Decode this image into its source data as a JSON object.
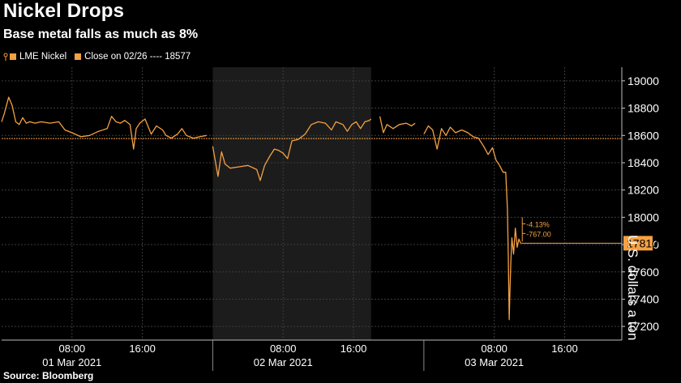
{
  "header": {
    "title": "Nickel Drops",
    "subtitle": "Base metal falls as much as 8%"
  },
  "legend": {
    "series_label": "LME Nickel",
    "close_label": "Close on 02/26 ---- 18577"
  },
  "source": "Source: Bloomberg",
  "colors": {
    "series": "#f5a142",
    "background": "#000000",
    "shade": "#1c1c1c",
    "grid": "#3c3c3c"
  },
  "chart_data": {
    "type": "line",
    "ylabel": "U.S. dollars a ton",
    "ylim": [
      17100,
      19100
    ],
    "yticks": [
      17200,
      17400,
      17600,
      17800,
      18000,
      18200,
      18400,
      18600,
      18800,
      19000
    ],
    "xlim_hours": [
      0,
      70.5
    ],
    "xticks": [
      {
        "h": 8,
        "time": "08:00",
        "date": "01 Mar 2021"
      },
      {
        "h": 16,
        "time": "16:00",
        "date": ""
      },
      {
        "h": 32,
        "time": "08:00",
        "date": "02 Mar 2021"
      },
      {
        "h": 40,
        "time": "16:00",
        "date": ""
      },
      {
        "h": 56,
        "time": "08:00",
        "date": "03 Mar 2021"
      },
      {
        "h": 64,
        "time": "16:00",
        "date": ""
      }
    ],
    "shaded_range_hours": [
      24,
      42
    ],
    "reference_line": {
      "label": "Close on 02/26",
      "value": 18577
    },
    "last_value": "17810",
    "annotation": {
      "percent": "-4.13%",
      "change": "-767.00"
    },
    "series": [
      {
        "name": "LME Nickel",
        "segments": [
          [
            [
              0.0,
              18700
            ],
            [
              0.3,
              18760
            ],
            [
              0.8,
              18880
            ],
            [
              1.2,
              18820
            ],
            [
              1.6,
              18700
            ],
            [
              2.0,
              18680
            ],
            [
              2.4,
              18730
            ],
            [
              2.8,
              18690
            ],
            [
              3.2,
              18700
            ],
            [
              3.8,
              18690
            ],
            [
              4.5,
              18700
            ],
            [
              5.5,
              18690
            ],
            [
              6.5,
              18700
            ],
            [
              7.2,
              18640
            ],
            [
              8.0,
              18620
            ],
            [
              9.0,
              18590
            ],
            [
              10.0,
              18600
            ],
            [
              11.0,
              18630
            ],
            [
              12.0,
              18650
            ],
            [
              12.5,
              18740
            ],
            [
              13.0,
              18700
            ],
            [
              13.5,
              18690
            ],
            [
              14.0,
              18710
            ],
            [
              14.6,
              18680
            ],
            [
              15.0,
              18500
            ],
            [
              15.3,
              18650
            ],
            [
              15.7,
              18690
            ],
            [
              16.3,
              18720
            ],
            [
              17.0,
              18610
            ],
            [
              17.6,
              18670
            ],
            [
              18.3,
              18640
            ],
            [
              18.7,
              18600
            ],
            [
              19.3,
              18580
            ],
            [
              20.0,
              18610
            ],
            [
              20.5,
              18650
            ],
            [
              21.0,
              18600
            ],
            [
              21.8,
              18580
            ],
            [
              22.5,
              18590
            ],
            [
              23.3,
              18600
            ]
          ],
          [
            [
              24.0,
              18520
            ],
            [
              24.6,
              18300
            ],
            [
              25.0,
              18480
            ],
            [
              25.4,
              18390
            ],
            [
              26.0,
              18360
            ],
            [
              27.0,
              18370
            ],
            [
              28.0,
              18380
            ],
            [
              29.0,
              18350
            ],
            [
              29.4,
              18270
            ],
            [
              29.9,
              18380
            ],
            [
              30.5,
              18450
            ],
            [
              31.0,
              18500
            ],
            [
              31.5,
              18490
            ],
            [
              32.0,
              18470
            ],
            [
              32.5,
              18430
            ],
            [
              33.0,
              18560
            ],
            [
              33.7,
              18570
            ],
            [
              34.5,
              18610
            ],
            [
              35.2,
              18680
            ],
            [
              36.0,
              18700
            ],
            [
              36.8,
              18690
            ],
            [
              37.5,
              18640
            ],
            [
              38.0,
              18700
            ],
            [
              38.8,
              18680
            ],
            [
              39.3,
              18630
            ],
            [
              39.8,
              18680
            ],
            [
              40.3,
              18700
            ],
            [
              40.8,
              18650
            ],
            [
              41.3,
              18700
            ],
            [
              41.8,
              18710
            ],
            [
              42.0,
              18720
            ]
          ],
          [
            [
              43.0,
              18740
            ],
            [
              43.4,
              18620
            ],
            [
              43.8,
              18680
            ],
            [
              44.5,
              18650
            ],
            [
              45.2,
              18680
            ],
            [
              46.0,
              18690
            ],
            [
              46.6,
              18670
            ],
            [
              47.0,
              18690
            ]
          ],
          [
            [
              48.0,
              18610
            ],
            [
              48.5,
              18670
            ],
            [
              49.0,
              18640
            ],
            [
              49.5,
              18500
            ],
            [
              50.0,
              18650
            ],
            [
              50.5,
              18600
            ],
            [
              51.0,
              18660
            ],
            [
              51.6,
              18620
            ],
            [
              52.3,
              18640
            ],
            [
              53.0,
              18620
            ],
            [
              53.6,
              18590
            ],
            [
              54.2,
              18580
            ],
            [
              54.8,
              18520
            ],
            [
              55.3,
              18460
            ],
            [
              55.8,
              18510
            ],
            [
              56.2,
              18420
            ],
            [
              56.6,
              18380
            ],
            [
              57.0,
              18330
            ],
            [
              57.3,
              18330
            ],
            [
              57.5,
              18060
            ],
            [
              57.6,
              17700
            ],
            [
              57.7,
              17250
            ],
            [
              57.8,
              17500
            ],
            [
              57.9,
              17700
            ],
            [
              58.0,
              17850
            ],
            [
              58.2,
              17730
            ],
            [
              58.4,
              17920
            ],
            [
              58.6,
              17780
            ],
            [
              58.8,
              17840
            ],
            [
              59.0,
              17810
            ]
          ]
        ]
      }
    ]
  }
}
